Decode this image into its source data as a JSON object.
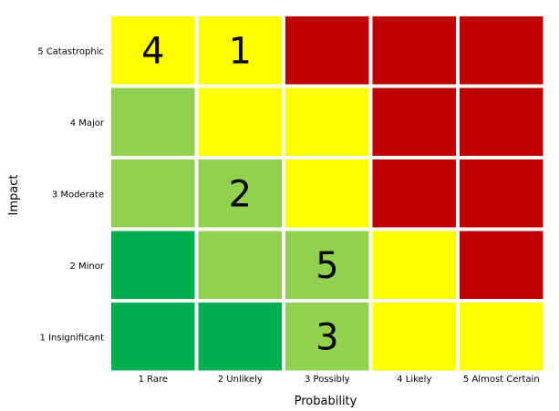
{
  "chart_data": {
    "type": "heatmap",
    "xlabel": "Probability",
    "ylabel": "Impact",
    "x_categories": [
      "1 Rare",
      "2 Unlikely",
      "3 Possibly",
      "4 Likely",
      "5 Almost Certain"
    ],
    "y_categories": [
      "5 Catastrophic",
      "4 Major",
      "3 Moderate",
      "2 Minor",
      "1 Insignificant"
    ],
    "levels": {
      "G": "#00b050",
      "L": "#92d050",
      "Y": "#ffff00",
      "R": "#c00000"
    },
    "grid": [
      [
        "Y",
        "Y",
        "R",
        "R",
        "R"
      ],
      [
        "L",
        "Y",
        "Y",
        "R",
        "R"
      ],
      [
        "L",
        "L",
        "Y",
        "R",
        "R"
      ],
      [
        "G",
        "L",
        "L",
        "Y",
        "R"
      ],
      [
        "G",
        "G",
        "L",
        "Y",
        "Y"
      ]
    ],
    "markers": [
      {
        "label": "4",
        "col": 0,
        "row": 0
      },
      {
        "label": "1",
        "col": 1,
        "row": 0
      },
      {
        "label": "2",
        "col": 1,
        "row": 2
      },
      {
        "label": "5",
        "col": 2,
        "row": 3
      },
      {
        "label": "3",
        "col": 2,
        "row": 4
      }
    ]
  }
}
